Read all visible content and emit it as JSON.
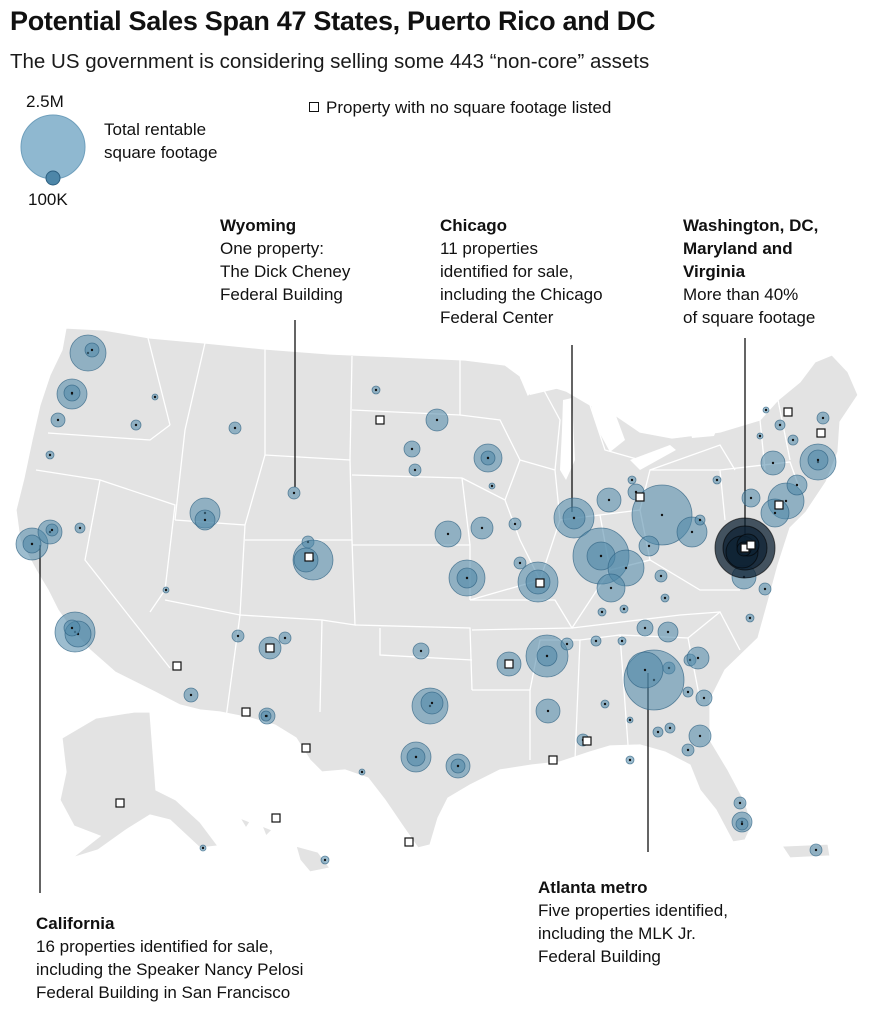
{
  "title": "Potential Sales Span 47 States, Puerto Rico and DC",
  "subtitle": "The US government is considering selling some 443 “non-core” assets",
  "legend": {
    "max_label": "2.5M",
    "min_label": "100K",
    "size_label_line1": "Total rentable",
    "size_label_line2": "square footage",
    "square_label": "Property with no square footage listed"
  },
  "callouts": {
    "wyoming": {
      "heading": "Wyoming",
      "line1": "One property:",
      "line2": "The Dick Cheney",
      "line3": "Federal Building"
    },
    "chicago": {
      "heading": "Chicago",
      "line1": "11 properties",
      "line2": "identified for sale,",
      "line3": "including the Chicago",
      "line4": "Federal Center"
    },
    "dc": {
      "heading1": "Washington, DC,",
      "heading2": "Maryland and",
      "heading3": "Virginia",
      "line1": "More than 40%",
      "line2": "of square footage"
    },
    "atlanta": {
      "heading": "Atlanta metro",
      "line1": "Five properties identified,",
      "line2": "including the MLK Jr.",
      "line3": "Federal Building"
    },
    "california": {
      "heading": "California",
      "line1": "16 properties identified for sale,",
      "line2": "including the Speaker Nancy Pelosi",
      "line3": "Federal Building in San Francisco"
    }
  },
  "colors": {
    "land": "#e3e3e3",
    "border": "#ffffff",
    "bubble_fill": "#4d86a8",
    "bubble_stroke": "#2c5f80",
    "dark_core": "#0d2233",
    "leader": "#111111"
  }
}
